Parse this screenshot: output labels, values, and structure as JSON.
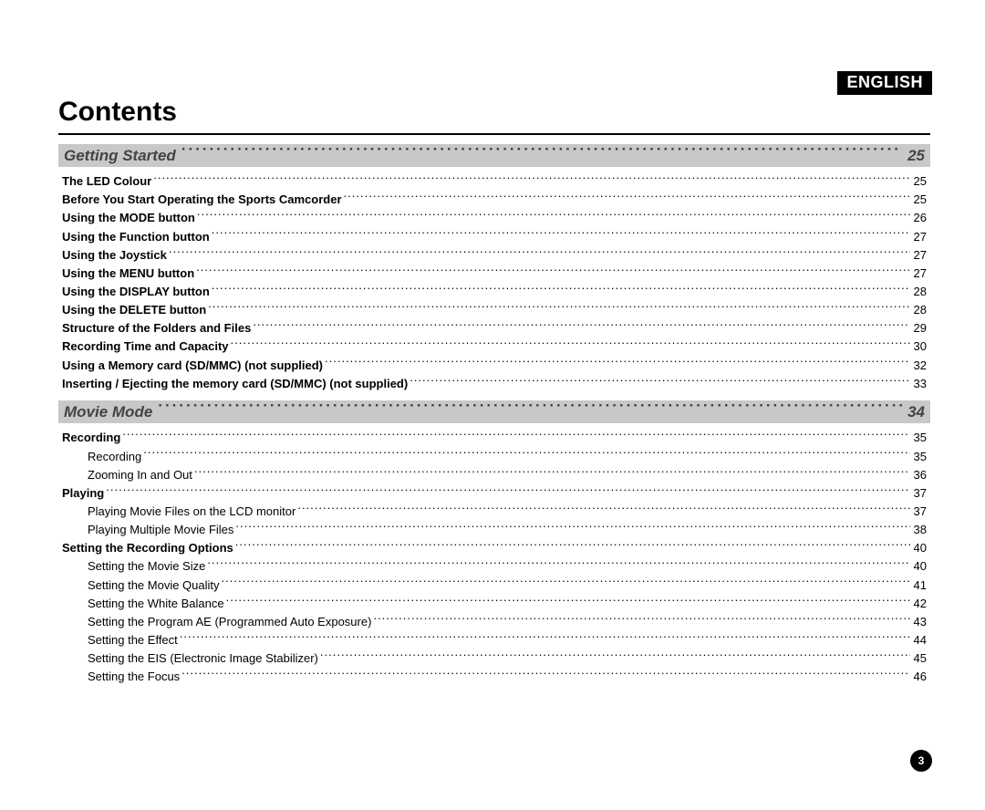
{
  "language_badge": "ENGLISH",
  "title": "Contents",
  "page_number": "3",
  "sections": [
    {
      "title": "Getting Started",
      "page": "25",
      "items": [
        {
          "label": "The LED Colour",
          "page": "25",
          "bold": true
        },
        {
          "label": "Before You Start Operating the Sports Camcorder",
          "page": "25",
          "bold": true
        },
        {
          "label": "Using the MODE button",
          "page": "26",
          "bold": true
        },
        {
          "label": "Using the Function button",
          "page": "27",
          "bold": true
        },
        {
          "label": "Using the Joystick",
          "page": "27",
          "bold": true
        },
        {
          "label": "Using the MENU button",
          "page": "27",
          "bold": true
        },
        {
          "label": "Using the DISPLAY button",
          "page": "28",
          "bold": true
        },
        {
          "label": "Using the DELETE button",
          "page": "28",
          "bold": true
        },
        {
          "label": "Structure of the Folders and Files",
          "page": "29",
          "bold": true
        },
        {
          "label": "Recording Time and Capacity",
          "page": "30",
          "bold": true
        },
        {
          "label": "Using a Memory card (SD/MMC) (not supplied)",
          "page": "32",
          "bold": true
        },
        {
          "label": "Inserting / Ejecting the memory card (SD/MMC) (not supplied)",
          "page": "33",
          "bold": true
        }
      ]
    },
    {
      "title": "Movie Mode",
      "page": "34",
      "items": [
        {
          "label": "Recording",
          "page": "35",
          "bold": true
        },
        {
          "label": "Recording",
          "page": "35",
          "sub": true
        },
        {
          "label": "Zooming In and Out",
          "page": "36",
          "sub": true
        },
        {
          "label": "Playing",
          "page": "37",
          "bold": true
        },
        {
          "label": "Playing Movie Files on the LCD monitor",
          "page": "37",
          "sub": true
        },
        {
          "label": "Playing Multiple Movie Files",
          "page": "38",
          "sub": true
        },
        {
          "label": "Setting the Recording Options",
          "page": "40",
          "bold": true
        },
        {
          "label": "Setting the Movie Size",
          "page": "40",
          "sub": true
        },
        {
          "label": "Setting the Movie Quality",
          "page": "41",
          "sub": true
        },
        {
          "label": "Setting the White Balance",
          "page": "42",
          "sub": true
        },
        {
          "label": "Setting the Program AE (Programmed Auto Exposure)",
          "page": "43",
          "sub": true
        },
        {
          "label": "Setting the Effect",
          "page": "44",
          "sub": true
        },
        {
          "label": "Setting the EIS (Electronic Image Stabilizer)",
          "page": "45",
          "sub": true
        },
        {
          "label": "Setting the Focus",
          "page": "46",
          "sub": true
        }
      ]
    }
  ]
}
